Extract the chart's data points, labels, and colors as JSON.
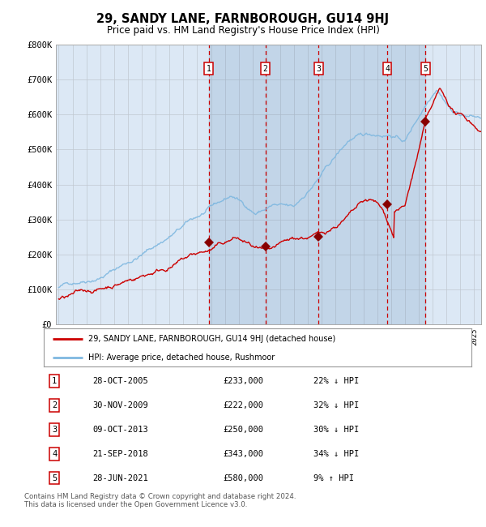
{
  "title": "29, SANDY LANE, FARNBOROUGH, GU14 9HJ",
  "subtitle": "Price paid vs. HM Land Registry's House Price Index (HPI)",
  "background_color": "#ffffff",
  "plot_bg_color": "#dce8f5",
  "ylabel_ticks": [
    "£0",
    "£100K",
    "£200K",
    "£300K",
    "£400K",
    "£500K",
    "£600K",
    "£700K",
    "£800K"
  ],
  "ytick_values": [
    0,
    100000,
    200000,
    300000,
    400000,
    500000,
    600000,
    700000,
    800000
  ],
  "ylim": [
    0,
    800000
  ],
  "xlim_start": 1994.8,
  "xlim_end": 2025.5,
  "sale_dates": [
    2005.83,
    2009.92,
    2013.77,
    2018.72,
    2021.49
  ],
  "sale_prices": [
    233000,
    222000,
    250000,
    343000,
    580000
  ],
  "sale_labels": [
    "1",
    "2",
    "3",
    "4",
    "5"
  ],
  "grid_color": "#c0c8d0",
  "hpi_line_color": "#7fb8e0",
  "price_line_color": "#cc0000",
  "sale_dot_color": "#880000",
  "vline_color": "#cc0000",
  "legend_entries": [
    "29, SANDY LANE, FARNBOROUGH, GU14 9HJ (detached house)",
    "HPI: Average price, detached house, Rushmoor"
  ],
  "table_rows": [
    [
      "1",
      "28-OCT-2005",
      "£233,000",
      "22% ↓ HPI"
    ],
    [
      "2",
      "30-NOV-2009",
      "£222,000",
      "32% ↓ HPI"
    ],
    [
      "3",
      "09-OCT-2013",
      "£250,000",
      "30% ↓ HPI"
    ],
    [
      "4",
      "21-SEP-2018",
      "£343,000",
      "34% ↓ HPI"
    ],
    [
      "5",
      "28-JUN-2021",
      "£580,000",
      "9% ↑ HPI"
    ]
  ],
  "footnote": "Contains HM Land Registry data © Crown copyright and database right 2024.\nThis data is licensed under the Open Government Licence v3.0.",
  "title_fontsize": 10.5,
  "subtitle_fontsize": 8.5
}
